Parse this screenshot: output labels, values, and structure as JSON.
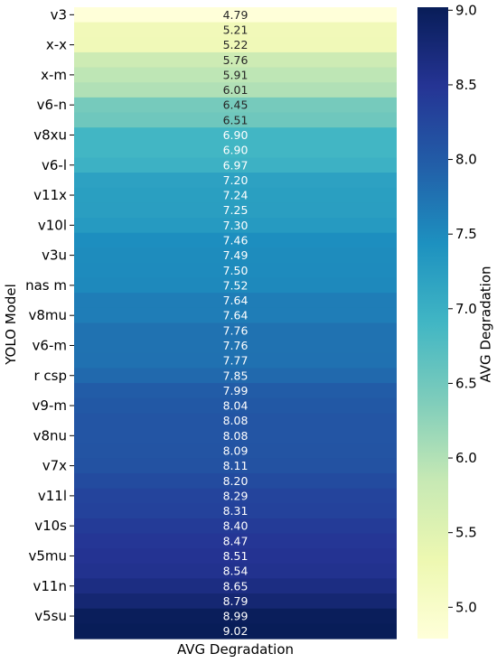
{
  "chart_data": {
    "type": "heatmap",
    "ylabel": "YOLO Model",
    "xlabel": "AVG Degradation",
    "colorbar_label": "AVG Degradation",
    "colormap": "YlGnBu",
    "color_range": [
      4.79,
      9.02
    ],
    "colorbar_ticks": [
      "5.0",
      "5.5",
      "6.0",
      "6.5",
      "7.0",
      "7.5",
      "8.0",
      "8.5",
      "9.0"
    ],
    "row_tick_labels": [
      "v3",
      "x-x",
      "x-m",
      "v6-n",
      "v8xu",
      "v6-l",
      "v11x",
      "v10l",
      "v3u",
      "nas m",
      "v8mu",
      "v6-m",
      "r csp",
      "v9-m",
      "v8nu",
      "v7x",
      "v11l",
      "v10s",
      "v5mu",
      "v11n",
      "v5su"
    ],
    "values": [
      "4.79",
      "5.21",
      "5.22",
      "5.76",
      "5.91",
      "6.01",
      "6.45",
      "6.51",
      "6.90",
      "6.90",
      "6.97",
      "7.20",
      "7.24",
      "7.25",
      "7.30",
      "7.46",
      "7.49",
      "7.50",
      "7.52",
      "7.64",
      "7.64",
      "7.76",
      "7.76",
      "7.77",
      "7.85",
      "7.99",
      "8.04",
      "8.08",
      "8.08",
      "8.09",
      "8.11",
      "8.20",
      "8.29",
      "8.31",
      "8.40",
      "8.47",
      "8.51",
      "8.54",
      "8.65",
      "8.79",
      "8.99",
      "9.02"
    ]
  }
}
